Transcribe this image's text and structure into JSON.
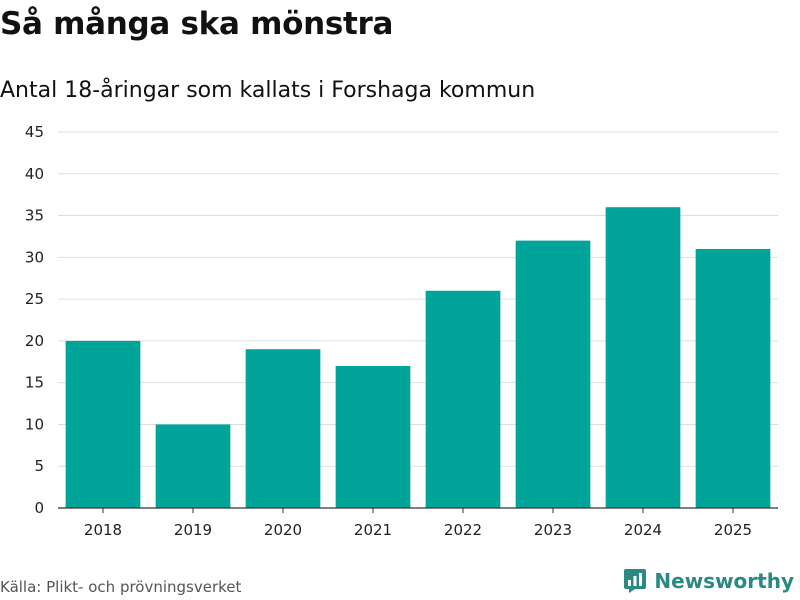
{
  "header": {
    "title": "Så många ska mönstra",
    "subtitle": "Antal 18-åringar som kallats i Forshaga kommun"
  },
  "footer": {
    "source": "Källa: Plikt- och prövningsverket",
    "brand": "Newsworthy"
  },
  "colors": {
    "bar": "#00a499",
    "grid": "#dddddd",
    "axis": "#333333",
    "brand": "#2a8a83"
  },
  "chart_data": {
    "type": "bar",
    "title": "Så många ska mönstra",
    "subtitle": "Antal 18-åringar som kallats i Forshaga kommun",
    "xlabel": "",
    "ylabel": "",
    "categories": [
      "2018",
      "2019",
      "2020",
      "2021",
      "2022",
      "2023",
      "2024",
      "2025"
    ],
    "values": [
      20,
      10,
      19,
      17,
      26,
      32,
      36,
      31
    ],
    "ylim": [
      0,
      45
    ],
    "yticks": [
      0,
      5,
      10,
      15,
      20,
      25,
      30,
      35,
      40,
      45
    ],
    "grid": true,
    "legend": "none"
  }
}
